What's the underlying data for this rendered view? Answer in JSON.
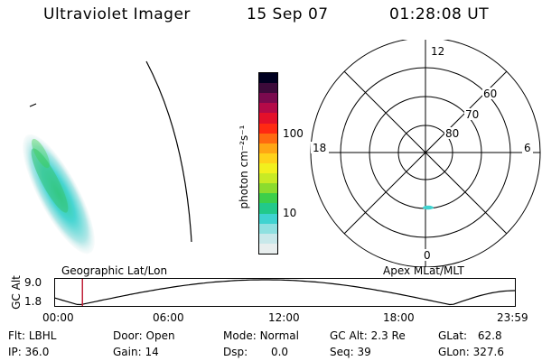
{
  "header": {
    "instrument": "Ultraviolet Imager",
    "date": "15 Sep 07",
    "time": "01:28:08 UT"
  },
  "colorbar": {
    "unit_label": "photon cm⁻²s⁻¹",
    "ticks": [
      {
        "label": "100",
        "value": 100
      },
      {
        "label": "10",
        "value": 10
      }
    ],
    "colors": [
      "#e8eeee",
      "#c8e8ea",
      "#8ee0e0",
      "#3fd3d0",
      "#22c98a",
      "#3ccf4a",
      "#8bdc2e",
      "#c8ea25",
      "#f2f01e",
      "#ffd21a",
      "#ffa614",
      "#ff6a10",
      "#ff2a12",
      "#e4102a",
      "#b40a48",
      "#7a0a4e",
      "#3c0a3a",
      "#000020"
    ]
  },
  "polar_plot": {
    "hour_labels": {
      "top": "12",
      "left": "18",
      "right": "6",
      "bottom": "0"
    },
    "lat_labels": [
      "60",
      "70",
      "80"
    ]
  },
  "timeline": {
    "y_axis_label": "GC Alt",
    "y_ticks": [
      "9.0",
      "1.8"
    ],
    "left_caption": "Geographic Lat/Lon",
    "right_caption": "Apex MLat/MLT",
    "time_ticks": [
      "00:00",
      "06:00",
      "12:00",
      "18:00",
      "23:59"
    ],
    "marker_time_hours": 1.47,
    "marker_color": "#c0223a"
  },
  "info": {
    "filter": {
      "label": "Flt:",
      "value": "LBHL"
    },
    "ip": {
      "label": "IP:",
      "value": "36.0"
    },
    "door": {
      "label": "Door:",
      "value": "Open"
    },
    "gain": {
      "label": "Gain:",
      "value": "14"
    },
    "mode": {
      "label": "Mode:",
      "value": "Normal"
    },
    "dsp": {
      "label": "Dsp:",
      "value": "0.0"
    },
    "gc_alt": {
      "label": "GC Alt:",
      "value": "2.3 Re"
    },
    "seq": {
      "label": "Seq:",
      "value": "39"
    },
    "glat": {
      "label": "GLat:",
      "value": "62.8"
    },
    "glon": {
      "label": "GLon:",
      "value": "327.6"
    }
  }
}
